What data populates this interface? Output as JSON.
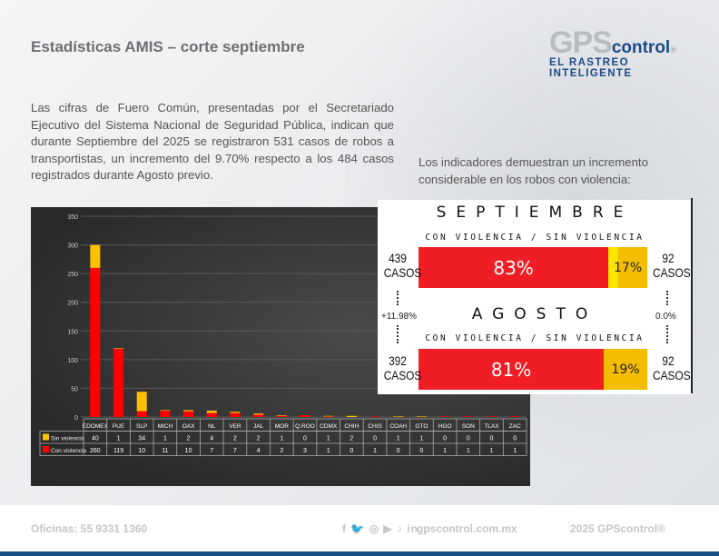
{
  "header": {
    "title": "Estadísticas AMIS – corte septiembre"
  },
  "logo": {
    "gps": "GPS",
    "control": "control",
    "reg": "®",
    "tagline": "EL RASTREO INTELIGENTE"
  },
  "intro": "Las cifras de Fuero Común, presentadas por el Secretariado Ejecutivo del Sistema Nacional de Seguridad Pública, indican que durante Septiembre del 2025 se registraron 531 casos de robos a transportistas, un incremento del 9.70% respecto a los 484 casos registrados durante Agosto previo.",
  "indicators_text": "Los indicadores demuestran un incremento considerable en los robos con violencia:",
  "chart_data": {
    "type": "bar",
    "stacked": true,
    "categories": [
      "EDOMEX",
      "PUE",
      "SLP",
      "MICH",
      "OAX",
      "NL",
      "VER",
      "JAL",
      "MOR",
      "Q.ROO",
      "CDMX",
      "CHIH",
      "CHIS",
      "COAH",
      "GTO",
      "HGO",
      "SON",
      "TLAX",
      "ZAC"
    ],
    "series": [
      {
        "name": "Con violencia",
        "color": "#ff0000",
        "values": [
          260,
          119,
          10,
          11,
          10,
          7,
          7,
          4,
          2,
          3,
          1,
          0,
          1,
          0,
          0,
          1,
          1,
          1,
          1
        ]
      },
      {
        "name": "Sin violencia",
        "color": "#ffc000",
        "values": [
          40,
          1,
          34,
          1,
          2,
          4,
          2,
          2,
          1,
          0,
          1,
          2,
          0,
          1,
          1,
          0,
          0,
          0,
          0
        ]
      }
    ],
    "yticks": [
      0,
      50,
      100,
      150,
      200,
      250,
      300,
      350
    ],
    "ylim": [
      0,
      350
    ],
    "grid": true,
    "legend": "data-table"
  },
  "comparison": {
    "september": {
      "title": "SEPTIEMBRE",
      "subtitle": "CON VIOLENCIA / SIN VIOLENCIA",
      "con_pct": "83%",
      "sin_pct": "17%",
      "con_value": 83,
      "con_cases": "439",
      "sin_cases": "92",
      "casos": "CASOS"
    },
    "august": {
      "title": "AGOSTO",
      "subtitle": "CON VIOLENCIA / SIN VIOLENCIA",
      "con_pct": "81%",
      "sin_pct": "19%",
      "con_value": 81,
      "con_cases": "392",
      "sin_cases": "92",
      "casos": "CASOS"
    },
    "change_con": "+11.98%",
    "change_sin": "0.0%"
  },
  "footer": {
    "phone": "Oficinas: 55 9331 1360",
    "social_icons": "f 🐦 ◎ ▶ ♪ in",
    "website": "gpscontrol.com.mx",
    "copyright": "2025 GPScontrol®"
  }
}
